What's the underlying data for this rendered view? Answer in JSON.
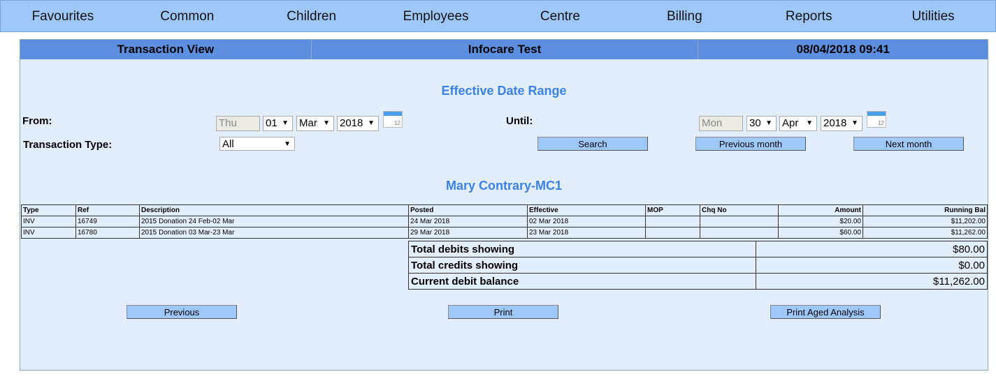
{
  "nav": [
    "Favourites",
    "Common",
    "Children",
    "Employees",
    "Centre",
    "Billing",
    "Reports",
    "Utilities"
  ],
  "header": {
    "view": "Transaction View",
    "centre": "Infocare Test",
    "datetime": "08/04/2018 09:41"
  },
  "filter": {
    "title": "Effective Date Range",
    "from_label": "From:",
    "from": {
      "weekday": "Thu",
      "day": "01",
      "month": "Mar",
      "year": "2018"
    },
    "until_label": "Until:",
    "until": {
      "weekday": "Mon",
      "day": "30",
      "month": "Apr",
      "year": "2018"
    },
    "type_label": "Transaction Type:",
    "type": "All",
    "calendar_day": "12",
    "search": "Search",
    "prev_month": "Previous month",
    "next_month": "Next month"
  },
  "account": "Mary Contrary-MC1",
  "table": {
    "headers": [
      "Type",
      "Ref",
      "Description",
      "Posted",
      "Effective",
      "MOP",
      "Chq No",
      "Amount",
      "Running Bal"
    ],
    "rows": [
      [
        "INV",
        "16749",
        "2015 Donation 24 Feb-02 Mar",
        "24 Mar 2018",
        "02 Mar 2018",
        "",
        "",
        "$20.00",
        "$11,202.00"
      ],
      [
        "INV",
        "16780",
        "2015 Donation 03 Mar-23 Mar",
        "29 Mar 2018",
        "23 Mar 2018",
        "",
        "",
        "$60.00",
        "$11,262.00"
      ]
    ]
  },
  "summary": [
    [
      "Total debits showing",
      "$80.00"
    ],
    [
      "Total credits showing",
      "$0.00"
    ],
    [
      "Current debit balance",
      "$11,262.00"
    ]
  ],
  "buttons": {
    "previous": "Previous",
    "print": "Print",
    "aged": "Print Aged Analysis"
  }
}
